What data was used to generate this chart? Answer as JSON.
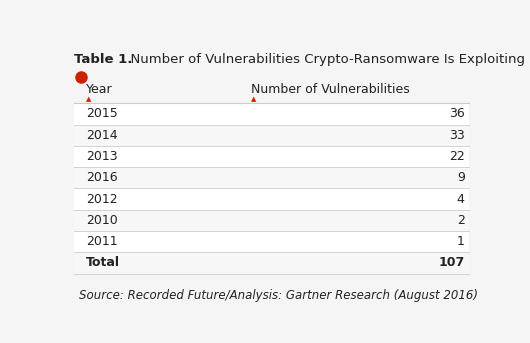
{
  "title_bold": "Table 1.",
  "title_rest": "  Number of Vulnerabilities Crypto-Ransomware Is Exploiting (by Year)",
  "col1_header": "Year",
  "col2_header": "Number of Vulnerabilities",
  "col1_sort_indicator": "▲",
  "col2_sort_indicator": "▲",
  "rows": [
    [
      "2015",
      "36"
    ],
    [
      "2014",
      "33"
    ],
    [
      "2013",
      "22"
    ],
    [
      "2016",
      "9"
    ],
    [
      "2012",
      "4"
    ],
    [
      "2010",
      "2"
    ],
    [
      "2011",
      "1"
    ],
    [
      "Total",
      "107"
    ]
  ],
  "source_text": "Source: Recorded Future/Analysis: Gartner Research (August 2016)",
  "bg_color": "#f5f5f5",
  "text_color": "#222222",
  "line_color": "#cccccc",
  "red_icon_color": "#cc2200",
  "title_fontsize": 9.5,
  "header_fontsize": 9,
  "row_fontsize": 9,
  "source_fontsize": 8.5
}
